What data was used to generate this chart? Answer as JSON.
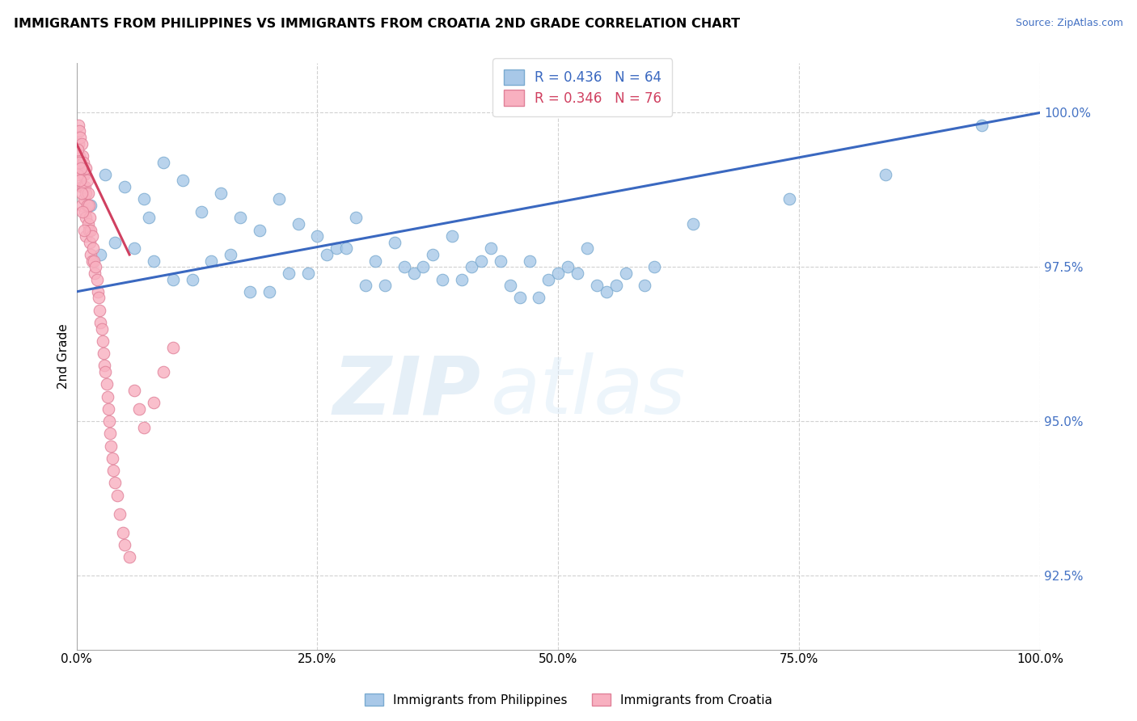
{
  "title": "IMMIGRANTS FROM PHILIPPINES VS IMMIGRANTS FROM CROATIA 2ND GRADE CORRELATION CHART",
  "source_text": "Source: ZipAtlas.com",
  "ylabel": "2nd Grade",
  "xmin": 0.0,
  "xmax": 100.0,
  "ymin": 91.3,
  "ymax": 100.8,
  "ytick_vals": [
    92.5,
    95.0,
    97.5,
    100.0
  ],
  "xtick_vals": [
    0.0,
    25.0,
    50.0,
    75.0,
    100.0
  ],
  "legend_blue_label": "R = 0.436   N = 64",
  "legend_pink_label": "R = 0.346   N = 76",
  "blue_color": "#a8c8e8",
  "pink_color": "#f8b0c0",
  "blue_edge": "#7aaad0",
  "pink_edge": "#e08098",
  "trend_blue_color": "#3a68c0",
  "trend_pink_color": "#d04060",
  "watermark_zip": "ZIP",
  "watermark_atlas": "atlas",
  "blue_scatter_x": [
    1.5,
    3.0,
    5.0,
    7.0,
    9.0,
    11.0,
    13.0,
    15.0,
    17.0,
    19.0,
    21.0,
    23.0,
    25.0,
    27.0,
    29.0,
    31.0,
    33.0,
    35.0,
    37.0,
    39.0,
    41.0,
    43.0,
    45.0,
    47.0,
    49.0,
    51.0,
    53.0,
    55.0,
    57.0,
    59.0,
    4.0,
    8.0,
    12.0,
    16.0,
    20.0,
    24.0,
    28.0,
    32.0,
    36.0,
    40.0,
    44.0,
    48.0,
    52.0,
    56.0,
    60.0,
    6.0,
    10.0,
    14.0,
    18.0,
    22.0,
    26.0,
    30.0,
    34.0,
    38.0,
    42.0,
    46.0,
    50.0,
    54.0,
    64.0,
    74.0,
    84.0,
    94.0,
    2.5,
    7.5
  ],
  "blue_scatter_y": [
    98.5,
    99.0,
    98.8,
    98.6,
    99.2,
    98.9,
    98.4,
    98.7,
    98.3,
    98.1,
    98.6,
    98.2,
    98.0,
    97.8,
    98.3,
    97.6,
    97.9,
    97.4,
    97.7,
    98.0,
    97.5,
    97.8,
    97.2,
    97.6,
    97.3,
    97.5,
    97.8,
    97.1,
    97.4,
    97.2,
    97.9,
    97.6,
    97.3,
    97.7,
    97.1,
    97.4,
    97.8,
    97.2,
    97.5,
    97.3,
    97.6,
    97.0,
    97.4,
    97.2,
    97.5,
    97.8,
    97.3,
    97.6,
    97.1,
    97.4,
    97.7,
    97.2,
    97.5,
    97.3,
    97.6,
    97.0,
    97.4,
    97.2,
    98.2,
    98.6,
    99.0,
    99.8,
    97.7,
    98.3
  ],
  "pink_scatter_x": [
    0.2,
    0.2,
    0.3,
    0.3,
    0.4,
    0.4,
    0.5,
    0.5,
    0.5,
    0.5,
    0.6,
    0.6,
    0.7,
    0.7,
    0.8,
    0.8,
    0.9,
    0.9,
    1.0,
    1.0,
    1.0,
    1.0,
    1.1,
    1.1,
    1.2,
    1.2,
    1.3,
    1.3,
    1.4,
    1.4,
    1.5,
    1.5,
    1.6,
    1.6,
    1.7,
    1.8,
    1.9,
    2.0,
    2.1,
    2.2,
    2.3,
    2.4,
    2.5,
    2.6,
    2.7,
    2.8,
    2.9,
    3.0,
    3.1,
    3.2,
    3.3,
    3.4,
    3.5,
    3.6,
    3.7,
    3.8,
    4.0,
    4.2,
    4.5,
    4.8,
    5.0,
    5.5,
    6.0,
    6.5,
    7.0,
    8.0,
    9.0,
    10.0,
    0.15,
    0.15,
    0.25,
    0.35,
    0.45,
    0.55,
    0.65,
    0.75
  ],
  "pink_scatter_y": [
    99.8,
    99.5,
    99.7,
    99.3,
    99.6,
    99.2,
    99.5,
    99.1,
    98.8,
    98.5,
    99.3,
    99.0,
    99.2,
    98.8,
    99.0,
    98.6,
    98.8,
    98.4,
    99.1,
    98.7,
    98.3,
    98.0,
    98.9,
    98.5,
    98.7,
    98.2,
    98.5,
    98.1,
    98.3,
    97.9,
    98.1,
    97.7,
    98.0,
    97.6,
    97.8,
    97.6,
    97.4,
    97.5,
    97.3,
    97.1,
    97.0,
    96.8,
    96.6,
    96.5,
    96.3,
    96.1,
    95.9,
    95.8,
    95.6,
    95.4,
    95.2,
    95.0,
    94.8,
    94.6,
    94.4,
    94.2,
    94.0,
    93.8,
    93.5,
    93.2,
    93.0,
    92.8,
    95.5,
    95.2,
    94.9,
    95.3,
    95.8,
    96.2,
    99.4,
    99.0,
    99.2,
    98.9,
    99.1,
    98.7,
    98.4,
    98.1
  ],
  "blue_trend_x": [
    0.0,
    100.0
  ],
  "blue_trend_y": [
    97.1,
    100.0
  ],
  "pink_trend_x": [
    0.0,
    5.5
  ],
  "pink_trend_y": [
    99.5,
    97.7
  ],
  "bottom_legend": [
    {
      "label": "Immigrants from Philippines",
      "color": "#a8c8e8",
      "edge": "#7aaad0"
    },
    {
      "label": "Immigrants from Croatia",
      "color": "#f8b0c0",
      "edge": "#e08098"
    }
  ]
}
